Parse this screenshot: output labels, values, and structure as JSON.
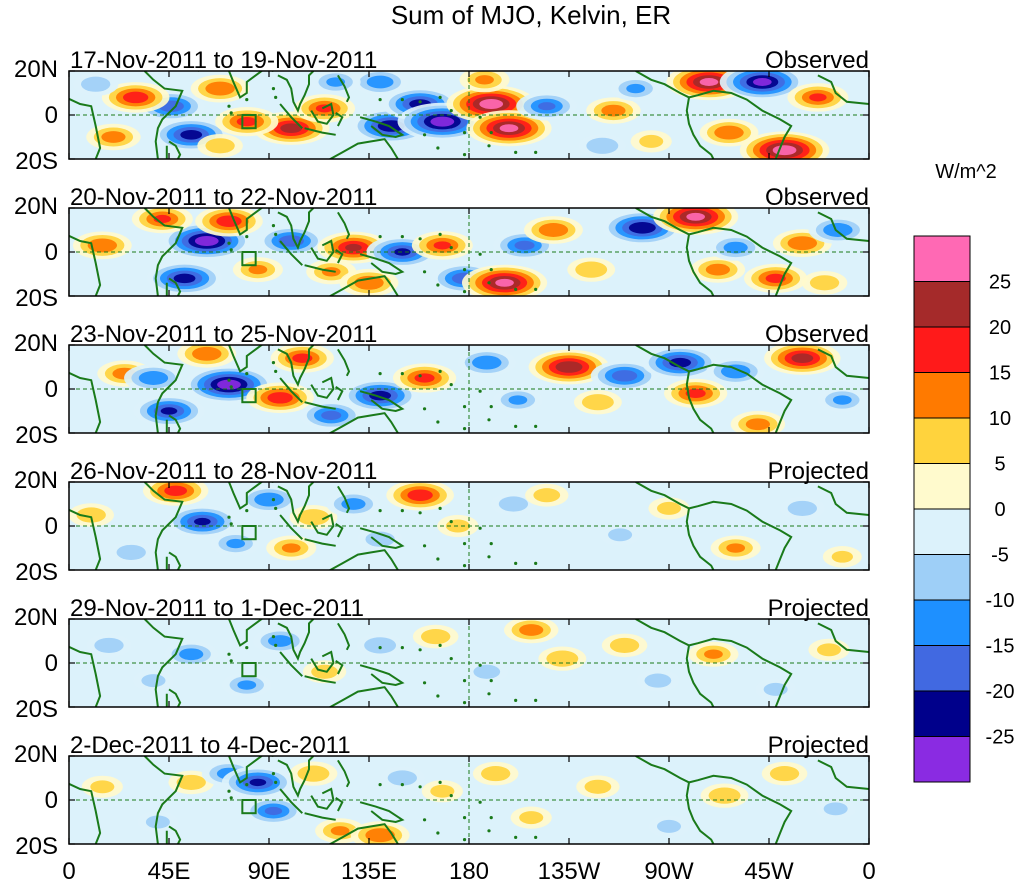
{
  "chart_data": {
    "type": "heatmap",
    "title": "Sum of MJO, Kelvin, ER",
    "units": "W/m^2",
    "xlabel": "",
    "ylabel": "",
    "xrange_deg_east": [
      0,
      360
    ],
    "yrange_deg": [
      -20,
      20
    ],
    "xticks": [
      {
        "lon": 0,
        "label": "0"
      },
      {
        "lon": 45,
        "label": "45E"
      },
      {
        "lon": 90,
        "label": "90E"
      },
      {
        "lon": 135,
        "label": "135E"
      },
      {
        "lon": 180,
        "label": "180"
      },
      {
        "lon": 225,
        "label": "135W"
      },
      {
        "lon": 270,
        "label": "90W"
      },
      {
        "lon": 315,
        "label": "45W"
      },
      {
        "lon": 360,
        "label": "0"
      }
    ],
    "yticks": [
      {
        "lat": 20,
        "label": "20N"
      },
      {
        "lat": 0,
        "label": "0"
      },
      {
        "lat": -20,
        "label": "20S"
      }
    ],
    "reference_lines": {
      "equator_lat": 0,
      "dateline_lon": 180
    },
    "box_marker": {
      "lon": [
        78,
        84
      ],
      "lat": [
        -6,
        0
      ]
    },
    "colorbar": {
      "levels": [
        -30,
        -25,
        -20,
        -15,
        -10,
        -5,
        0,
        5,
        10,
        15,
        20,
        25,
        30
      ],
      "tick_labels": [
        "-25",
        "-20",
        "-15",
        "-10",
        "-5",
        "0",
        "5",
        "10",
        "15",
        "20",
        "25"
      ],
      "colors": [
        "#8a2be2",
        "#00008b",
        "#4169e1",
        "#1e90ff",
        "#9ecff7",
        "#dcf2fb",
        "#fffacd",
        "#ffd33d",
        "#ff7a00",
        "#ff1a1a",
        "#a52a2a",
        "#ff69b4"
      ]
    },
    "panels": [
      {
        "period": "17-Nov-2011 to 19-Nov-2011",
        "status": "Observed",
        "features": [
          {
            "lon": 55,
            "lat": -9,
            "value": -22
          },
          {
            "lon": 46,
            "lat": 4,
            "value": -18
          },
          {
            "lon": 30,
            "lat": 8,
            "value": 18
          },
          {
            "lon": 20,
            "lat": -10,
            "value": 12
          },
          {
            "lon": 68,
            "lat": 12,
            "value": 14
          },
          {
            "lon": 68,
            "lat": -14,
            "value": 8
          },
          {
            "lon": 100,
            "lat": -6,
            "value": 22
          },
          {
            "lon": 80,
            "lat": -3,
            "value": 16
          },
          {
            "lon": 115,
            "lat": 3,
            "value": 15
          },
          {
            "lon": 140,
            "lat": 15,
            "value": -13
          },
          {
            "lon": 145,
            "lat": -5,
            "value": -24
          },
          {
            "lon": 158,
            "lat": 5,
            "value": -22
          },
          {
            "lon": 168,
            "lat": -3,
            "value": -28
          },
          {
            "lon": 190,
            "lat": 5,
            "value": 28
          },
          {
            "lon": 198,
            "lat": -6,
            "value": 26
          },
          {
            "lon": 187,
            "lat": 16,
            "value": 10
          },
          {
            "lon": 215,
            "lat": 4,
            "value": -15
          },
          {
            "lon": 245,
            "lat": 2,
            "value": 12
          },
          {
            "lon": 262,
            "lat": -12,
            "value": 6
          },
          {
            "lon": 255,
            "lat": 12,
            "value": -10
          },
          {
            "lon": 288,
            "lat": 15,
            "value": 26
          },
          {
            "lon": 297,
            "lat": -8,
            "value": 14
          },
          {
            "lon": 312,
            "lat": 15,
            "value": -26
          },
          {
            "lon": 322,
            "lat": -16,
            "value": 28
          },
          {
            "lon": 337,
            "lat": 8,
            "value": 15
          },
          {
            "lon": 12,
            "lat": 14,
            "value": -8
          },
          {
            "lon": 240,
            "lat": -14,
            "value": -9
          },
          {
            "lon": 120,
            "lat": 15,
            "value": -10
          }
        ]
      },
      {
        "period": "20-Nov-2011 to 22-Nov-2011",
        "status": "Observed",
        "features": [
          {
            "lon": 15,
            "lat": 3,
            "value": 14
          },
          {
            "lon": 52,
            "lat": -12,
            "value": -22
          },
          {
            "lon": 62,
            "lat": 5,
            "value": -28
          },
          {
            "lon": 42,
            "lat": 15,
            "value": 15
          },
          {
            "lon": 72,
            "lat": 14,
            "value": 18
          },
          {
            "lon": 85,
            "lat": -8,
            "value": 10
          },
          {
            "lon": 100,
            "lat": 5,
            "value": -18
          },
          {
            "lon": 118,
            "lat": -9,
            "value": 10
          },
          {
            "lon": 128,
            "lat": 2,
            "value": 20
          },
          {
            "lon": 150,
            "lat": 0,
            "value": -20
          },
          {
            "lon": 135,
            "lat": -14,
            "value": 14
          },
          {
            "lon": 168,
            "lat": 3,
            "value": 15
          },
          {
            "lon": 178,
            "lat": -12,
            "value": -18
          },
          {
            "lon": 196,
            "lat": -14,
            "value": 26
          },
          {
            "lon": 205,
            "lat": 3,
            "value": -16
          },
          {
            "lon": 218,
            "lat": 10,
            "value": 14
          },
          {
            "lon": 235,
            "lat": -8,
            "value": 9
          },
          {
            "lon": 258,
            "lat": 11,
            "value": -24
          },
          {
            "lon": 282,
            "lat": 16,
            "value": 26
          },
          {
            "lon": 292,
            "lat": -8,
            "value": 12
          },
          {
            "lon": 300,
            "lat": 2,
            "value": -12
          },
          {
            "lon": 318,
            "lat": -12,
            "value": 16
          },
          {
            "lon": 330,
            "lat": 4,
            "value": 14
          },
          {
            "lon": 346,
            "lat": 10,
            "value": -14
          },
          {
            "lon": 340,
            "lat": -14,
            "value": 8
          }
        ]
      },
      {
        "period": "23-Nov-2011 to 25-Nov-2011",
        "status": "Observed",
        "features": [
          {
            "lon": 25,
            "lat": 7,
            "value": 12
          },
          {
            "lon": 45,
            "lat": -10,
            "value": -20
          },
          {
            "lon": 38,
            "lat": 5,
            "value": -14
          },
          {
            "lon": 72,
            "lat": 2,
            "value": -28
          },
          {
            "lon": 62,
            "lat": 16,
            "value": 14
          },
          {
            "lon": 95,
            "lat": -4,
            "value": 18
          },
          {
            "lon": 105,
            "lat": 14,
            "value": 16
          },
          {
            "lon": 118,
            "lat": -12,
            "value": -16
          },
          {
            "lon": 140,
            "lat": -3,
            "value": -22
          },
          {
            "lon": 160,
            "lat": 5,
            "value": 16
          },
          {
            "lon": 188,
            "lat": 12,
            "value": -14
          },
          {
            "lon": 202,
            "lat": -5,
            "value": -10
          },
          {
            "lon": 225,
            "lat": 10,
            "value": 24
          },
          {
            "lon": 238,
            "lat": -6,
            "value": 9
          },
          {
            "lon": 250,
            "lat": 6,
            "value": -18
          },
          {
            "lon": 275,
            "lat": 12,
            "value": -22
          },
          {
            "lon": 282,
            "lat": -2,
            "value": 16
          },
          {
            "lon": 300,
            "lat": 8,
            "value": -14
          },
          {
            "lon": 310,
            "lat": -16,
            "value": 12
          },
          {
            "lon": 330,
            "lat": 14,
            "value": 22
          },
          {
            "lon": 348,
            "lat": -5,
            "value": -10
          }
        ]
      },
      {
        "period": "26-Nov-2011 to 28-Nov-2011",
        "status": "Projected",
        "features": [
          {
            "lon": 10,
            "lat": 5,
            "value": 8
          },
          {
            "lon": 28,
            "lat": -12,
            "value": -8
          },
          {
            "lon": 48,
            "lat": 16,
            "value": 17
          },
          {
            "lon": 60,
            "lat": 2,
            "value": -20
          },
          {
            "lon": 75,
            "lat": -8,
            "value": -10
          },
          {
            "lon": 90,
            "lat": 12,
            "value": -14
          },
          {
            "lon": 100,
            "lat": -10,
            "value": 10
          },
          {
            "lon": 110,
            "lat": 4,
            "value": 9
          },
          {
            "lon": 128,
            "lat": 10,
            "value": -12
          },
          {
            "lon": 140,
            "lat": -6,
            "value": -8
          },
          {
            "lon": 158,
            "lat": 14,
            "value": 18
          },
          {
            "lon": 175,
            "lat": 0,
            "value": 6
          },
          {
            "lon": 200,
            "lat": 10,
            "value": -8
          },
          {
            "lon": 215,
            "lat": 14,
            "value": 7
          },
          {
            "lon": 248,
            "lat": -4,
            "value": -6
          },
          {
            "lon": 270,
            "lat": 8,
            "value": 6
          },
          {
            "lon": 300,
            "lat": -10,
            "value": 10
          },
          {
            "lon": 330,
            "lat": 8,
            "value": -8
          },
          {
            "lon": 348,
            "lat": -14,
            "value": 5
          }
        ]
      },
      {
        "period": "29-Nov-2011 to 1-Dec-2011",
        "status": "Projected",
        "features": [
          {
            "lon": 18,
            "lat": 8,
            "value": -8
          },
          {
            "lon": 38,
            "lat": -8,
            "value": -6
          },
          {
            "lon": 55,
            "lat": 4,
            "value": -12
          },
          {
            "lon": 80,
            "lat": -10,
            "value": -10
          },
          {
            "lon": 95,
            "lat": 10,
            "value": -12
          },
          {
            "lon": 115,
            "lat": -4,
            "value": 7
          },
          {
            "lon": 140,
            "lat": 8,
            "value": -9
          },
          {
            "lon": 165,
            "lat": 12,
            "value": 8
          },
          {
            "lon": 188,
            "lat": -4,
            "value": -7
          },
          {
            "lon": 208,
            "lat": 15,
            "value": 12
          },
          {
            "lon": 222,
            "lat": 2,
            "value": 9
          },
          {
            "lon": 250,
            "lat": 8,
            "value": 8
          },
          {
            "lon": 265,
            "lat": -8,
            "value": -7
          },
          {
            "lon": 290,
            "lat": 4,
            "value": 10
          },
          {
            "lon": 318,
            "lat": -12,
            "value": -6
          },
          {
            "lon": 342,
            "lat": 6,
            "value": 6
          }
        ]
      },
      {
        "period": "2-Dec-2011 to 4-Dec-2011",
        "status": "Projected",
        "features": [
          {
            "lon": 15,
            "lat": 6,
            "value": 6
          },
          {
            "lon": 40,
            "lat": -10,
            "value": -6
          },
          {
            "lon": 55,
            "lat": 8,
            "value": 8
          },
          {
            "lon": 72,
            "lat": 12,
            "value": -12
          },
          {
            "lon": 85,
            "lat": 8,
            "value": -20
          },
          {
            "lon": 92,
            "lat": -5,
            "value": -15
          },
          {
            "lon": 110,
            "lat": 12,
            "value": 9
          },
          {
            "lon": 122,
            "lat": -14,
            "value": 10
          },
          {
            "lon": 140,
            "lat": -16,
            "value": 14
          },
          {
            "lon": 150,
            "lat": 10,
            "value": -8
          },
          {
            "lon": 168,
            "lat": 4,
            "value": 6
          },
          {
            "lon": 192,
            "lat": 12,
            "value": 8
          },
          {
            "lon": 208,
            "lat": -8,
            "value": 6
          },
          {
            "lon": 238,
            "lat": 6,
            "value": 7
          },
          {
            "lon": 270,
            "lat": -12,
            "value": -6
          },
          {
            "lon": 295,
            "lat": 2,
            "value": 9
          },
          {
            "lon": 322,
            "lat": 12,
            "value": 8
          },
          {
            "lon": 345,
            "lat": -4,
            "value": -6
          }
        ]
      }
    ]
  }
}
